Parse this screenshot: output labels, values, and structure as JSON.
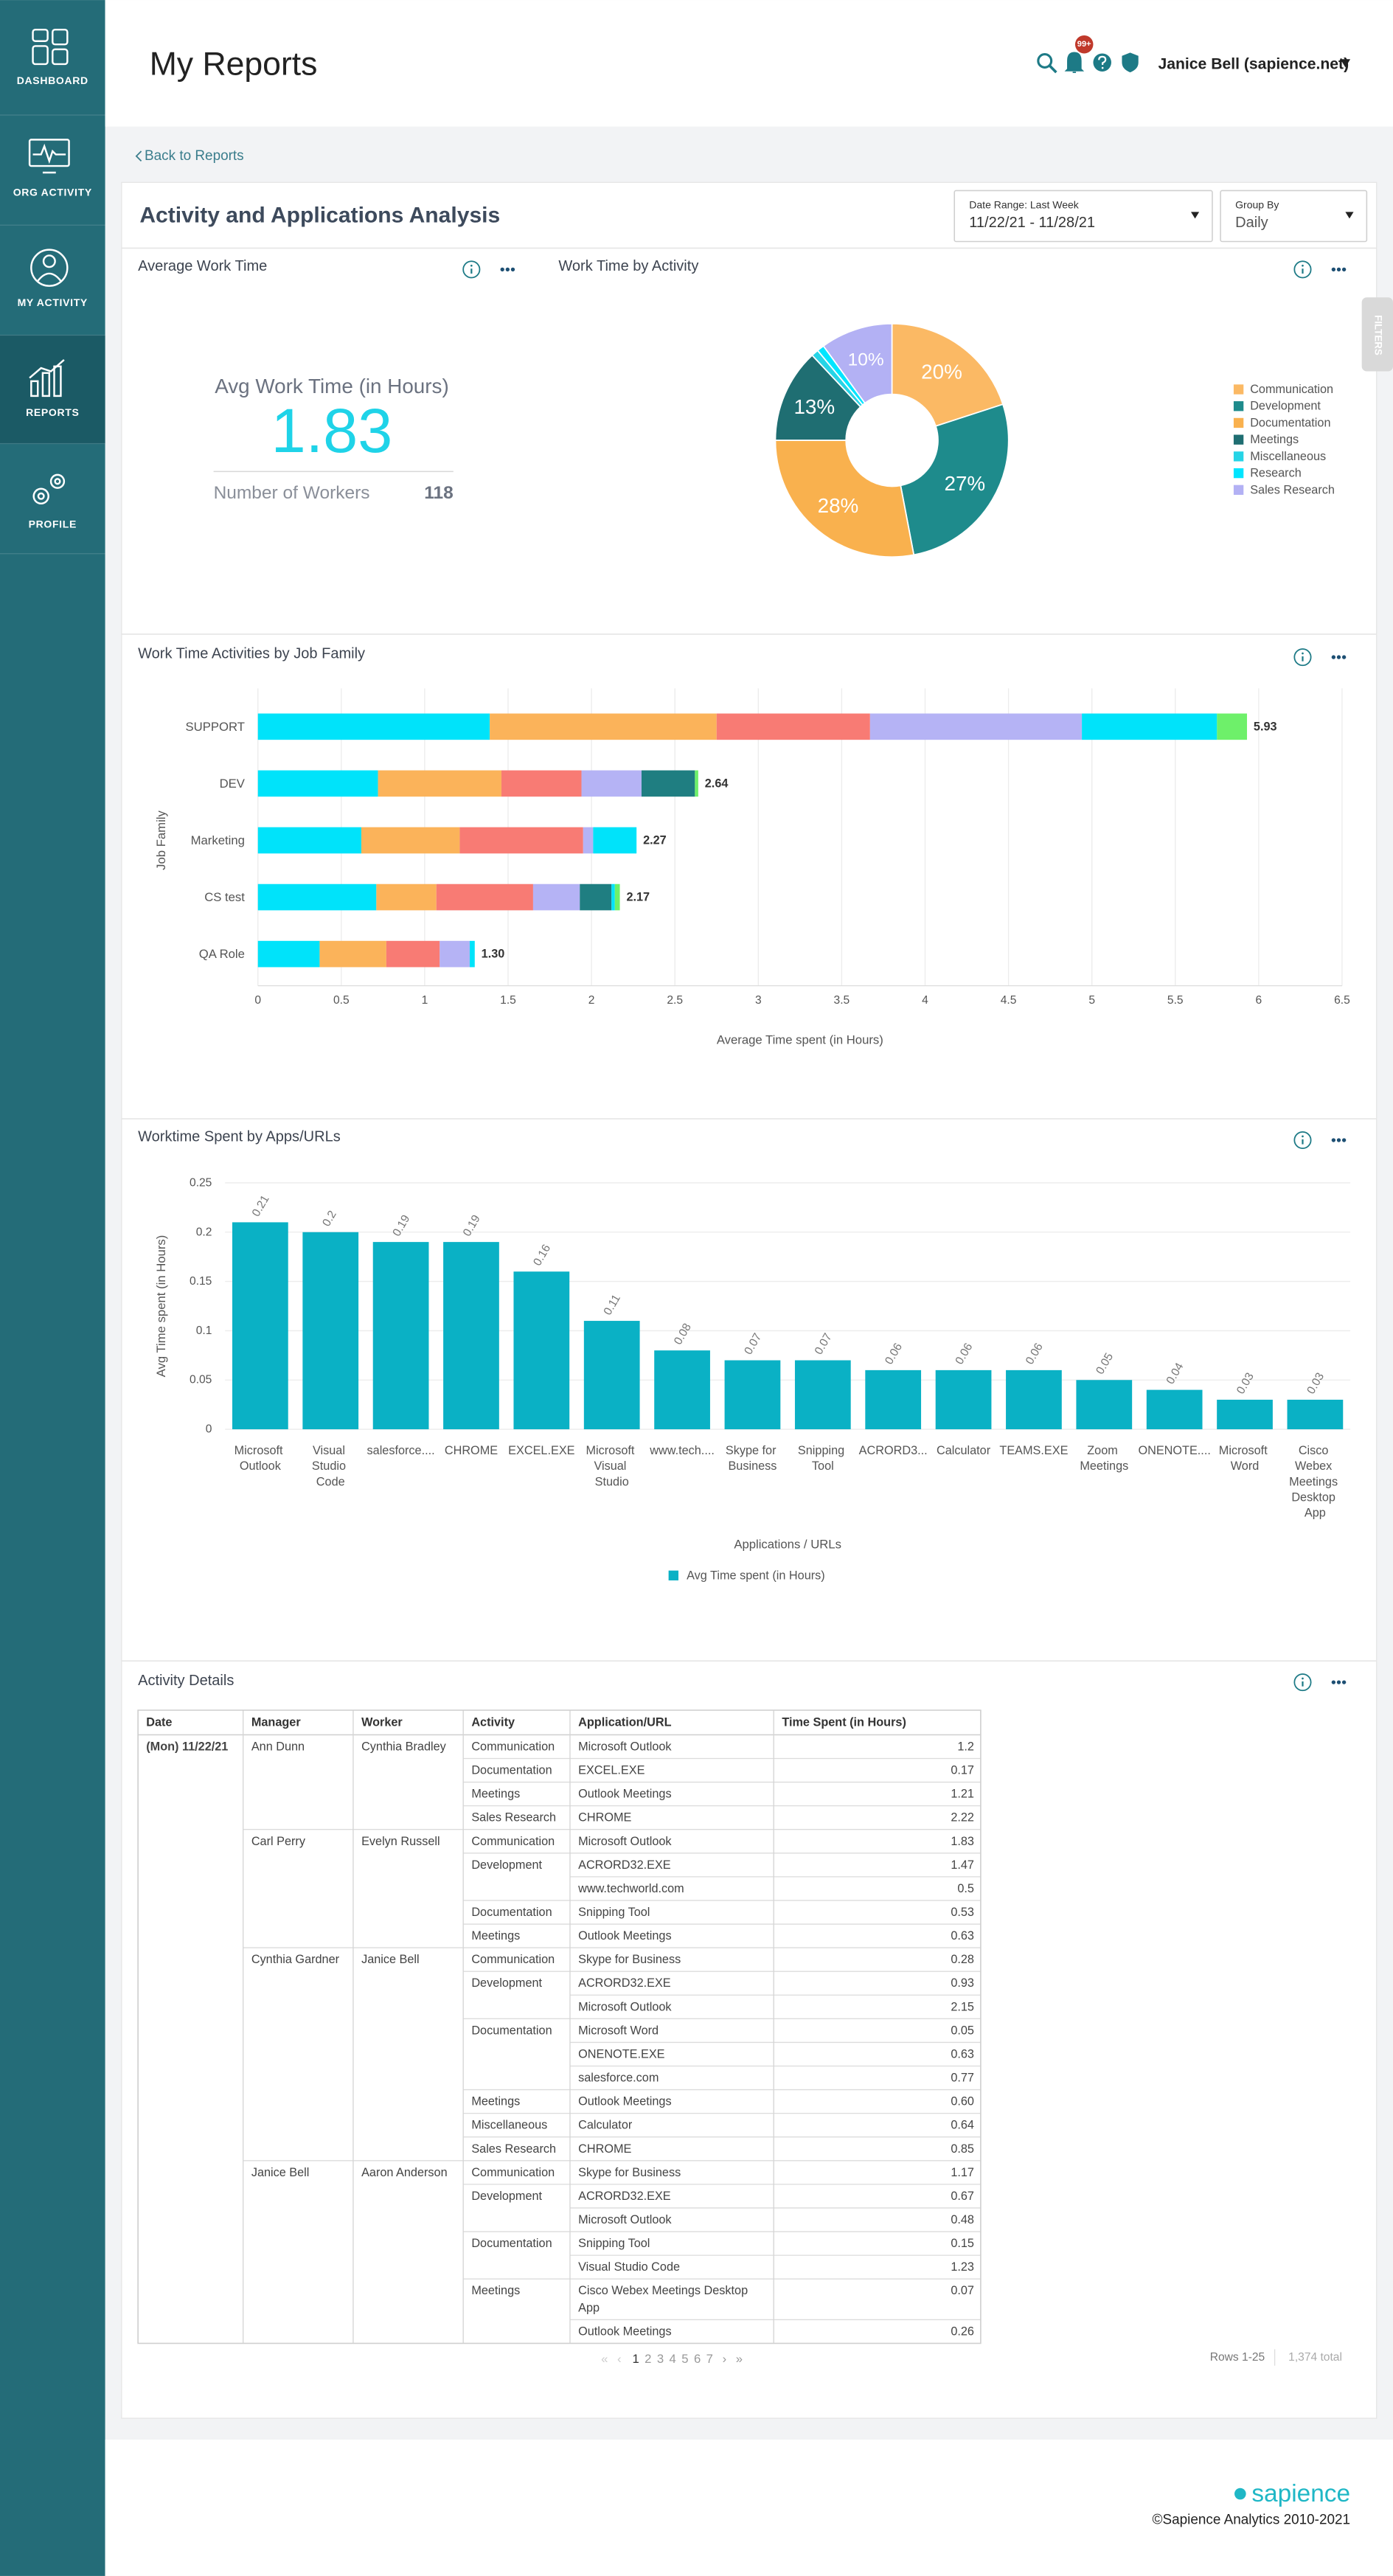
{
  "sidebar": {
    "items": [
      "DASHBOARD",
      "ORG ACTIVITY",
      "MY ACTIVITY",
      "REPORTS",
      "PROFILE"
    ]
  },
  "header": {
    "title": "My Reports",
    "notification_badge": "99+",
    "user": "Janice Bell (sapience.net)"
  },
  "back_link": "Back to Reports",
  "panel": {
    "title": "Activity and Applications Analysis",
    "date_range": {
      "label": "Date Range: Last Week",
      "value": "11/22/21 - 11/28/21"
    },
    "group_by": {
      "label": "Group By",
      "value": "Daily"
    },
    "filters_tab": "FILTERS"
  },
  "avg_card": {
    "title": "Average Work Time",
    "metric_label": "Avg Work Time (in Hours)",
    "metric_value": 1.83,
    "workers_label": "Number of Workers",
    "workers_value": 118
  },
  "charts": [
    {
      "type": "pie",
      "donut": true,
      "title": "Work Time by Activity",
      "categories": [
        "Communication",
        "Development",
        "Documentation",
        "Meetings",
        "Miscellaneous",
        "Research",
        "Sales Research"
      ],
      "values": [
        20,
        27,
        28,
        13,
        1,
        1,
        10
      ],
      "value_labels": [
        "20%",
        "27%",
        "28%",
        "13%",
        null,
        null,
        "10%"
      ],
      "colors": [
        "#fbb964",
        "#1e8b8c",
        "#f9b14e",
        "#1f6e72",
        "#26d4e6",
        "#00e5ff",
        "#b3b1f4"
      ],
      "legend": "right"
    },
    {
      "type": "bar",
      "orientation": "horizontal",
      "stacked": true,
      "title": "Work Time Activities by Job Family",
      "ylabel": "Job Family",
      "xlabel": "Average Time spent (in Hours)",
      "categories": [
        "SUPPORT",
        "DEV",
        "Marketing",
        "CS test",
        "QA Role"
      ],
      "series": [
        {
          "color": "#00e3fa",
          "values": [
            1.39,
            0.72,
            0.62,
            0.71,
            0.37
          ]
        },
        {
          "color": "#fbb35a",
          "values": [
            1.36,
            0.74,
            0.59,
            0.36,
            0.4
          ]
        },
        {
          "color": "#f87b74",
          "values": [
            0.92,
            0.48,
            0.74,
            0.58,
            0.32
          ]
        },
        {
          "color": "#b5b3f5",
          "values": [
            1.27,
            0.36,
            0.06,
            0.28,
            0.18
          ]
        },
        {
          "color": "#1f7e81",
          "values": [
            0,
            0.32,
            0,
            0.19,
            0
          ]
        },
        {
          "color": "#00e3fa",
          "values": [
            0.81,
            0,
            0.26,
            0.02,
            0.03
          ]
        },
        {
          "color": "#6ef06a",
          "values": [
            0.18,
            0.02,
            0,
            0.03,
            0
          ]
        }
      ],
      "total_labels": [
        "5.93",
        "2.64",
        "2.27",
        "2.17",
        "1.30"
      ],
      "xlim": [
        0,
        6.5
      ],
      "xticks": [
        0,
        0.5,
        1,
        1.5,
        2,
        2.5,
        3,
        3.5,
        4,
        4.5,
        5,
        5.5,
        6,
        6.5
      ],
      "grid": true
    },
    {
      "type": "bar",
      "title": "Worktime Spent by Apps/URLs",
      "xlabel": "Applications / URLs",
      "ylabel": "Avg Time spent (in Hours)",
      "categories": [
        "Microsoft Outlook",
        "Visual Studio Code",
        "salesforce....",
        "CHROME",
        "EXCEL.EXE",
        "Microsoft Visual Studio",
        "www.tech....",
        "Skype for Business",
        "Snipping Tool",
        "ACRORD3...",
        "Calculator",
        "TEAMS.EXE",
        "Zoom Meetings",
        "ONENOTE....",
        "Microsoft Word",
        "Cisco Webex Meetings Desktop App"
      ],
      "series": [
        {
          "name": "Avg Time spent (in Hours)",
          "color": "#0ab1c5",
          "values": [
            0.21,
            0.2,
            0.19,
            0.19,
            0.16,
            0.11,
            0.08,
            0.07,
            0.07,
            0.06,
            0.06,
            0.06,
            0.05,
            0.04,
            0.03,
            0.03
          ]
        }
      ],
      "ylim": [
        0,
        0.25
      ],
      "yticks": [
        0,
        0.05,
        0.1,
        0.15,
        0.2,
        0.25
      ],
      "grid": true,
      "legend": "bottom"
    }
  ],
  "table": {
    "title": "Activity Details",
    "columns": [
      "Date",
      "Manager",
      "Worker",
      "Activity",
      "Application/URL",
      "Time Spent (in Hours)"
    ],
    "rows": [
      [
        "(Mon) 11/22/21",
        "Ann Dunn",
        "Cynthia Bradley",
        "Communication",
        "Microsoft Outlook",
        "1.2"
      ],
      [
        null,
        null,
        null,
        "Documentation",
        "EXCEL.EXE",
        "0.17"
      ],
      [
        null,
        null,
        null,
        "Meetings",
        "Outlook Meetings",
        "1.21"
      ],
      [
        null,
        null,
        null,
        "Sales Research",
        "CHROME",
        "2.22"
      ],
      [
        null,
        "Carl Perry",
        "Evelyn Russell",
        "Communication",
        "Microsoft Outlook",
        "1.83"
      ],
      [
        null,
        null,
        null,
        "Development",
        "ACRORD32.EXE",
        "1.47"
      ],
      [
        null,
        null,
        null,
        null,
        "www.techworld.com",
        "0.5"
      ],
      [
        null,
        null,
        null,
        "Documentation",
        "Snipping Tool",
        "0.53"
      ],
      [
        null,
        null,
        null,
        "Meetings",
        "Outlook Meetings",
        "0.63"
      ],
      [
        null,
        "Cynthia Gardner",
        "Janice Bell",
        "Communication",
        "Skype for Business",
        "0.28"
      ],
      [
        null,
        null,
        null,
        "Development",
        "ACRORD32.EXE",
        "0.93"
      ],
      [
        null,
        null,
        null,
        null,
        "Microsoft Outlook",
        "2.15"
      ],
      [
        null,
        null,
        null,
        "Documentation",
        "Microsoft Word",
        "0.05"
      ],
      [
        null,
        null,
        null,
        null,
        "ONENOTE.EXE",
        "0.63"
      ],
      [
        null,
        null,
        null,
        null,
        "salesforce.com",
        "0.77"
      ],
      [
        null,
        null,
        null,
        "Meetings",
        "Outlook Meetings",
        "0.60"
      ],
      [
        null,
        null,
        null,
        "Miscellaneous",
        "Calculator",
        "0.64"
      ],
      [
        null,
        null,
        null,
        "Sales Research",
        "CHROME",
        "0.85"
      ],
      [
        null,
        "Janice Bell",
        "Aaron Anderson",
        "Communication",
        "Skype for Business",
        "1.17"
      ],
      [
        null,
        null,
        null,
        "Development",
        "ACRORD32.EXE",
        "0.67"
      ],
      [
        null,
        null,
        null,
        null,
        "Microsoft Outlook",
        "0.48"
      ],
      [
        null,
        null,
        null,
        "Documentation",
        "Snipping Tool",
        "0.15"
      ],
      [
        null,
        null,
        null,
        null,
        "Visual Studio Code",
        "1.23"
      ],
      [
        null,
        null,
        null,
        "Meetings",
        "Cisco Webex Meetings Desktop App",
        "0.07"
      ],
      [
        null,
        null,
        null,
        null,
        "Outlook Meetings",
        "0.26"
      ]
    ]
  },
  "pagination": {
    "items": [
      "«",
      "‹",
      "1",
      "2",
      "3",
      "4",
      "5",
      "6",
      "7",
      "›",
      "»"
    ],
    "rows": "Rows 1-25",
    "total": "1,374 total"
  },
  "footer": {
    "logo": "sapience",
    "copyright": "©Sapience Analytics 2010-2021"
  }
}
